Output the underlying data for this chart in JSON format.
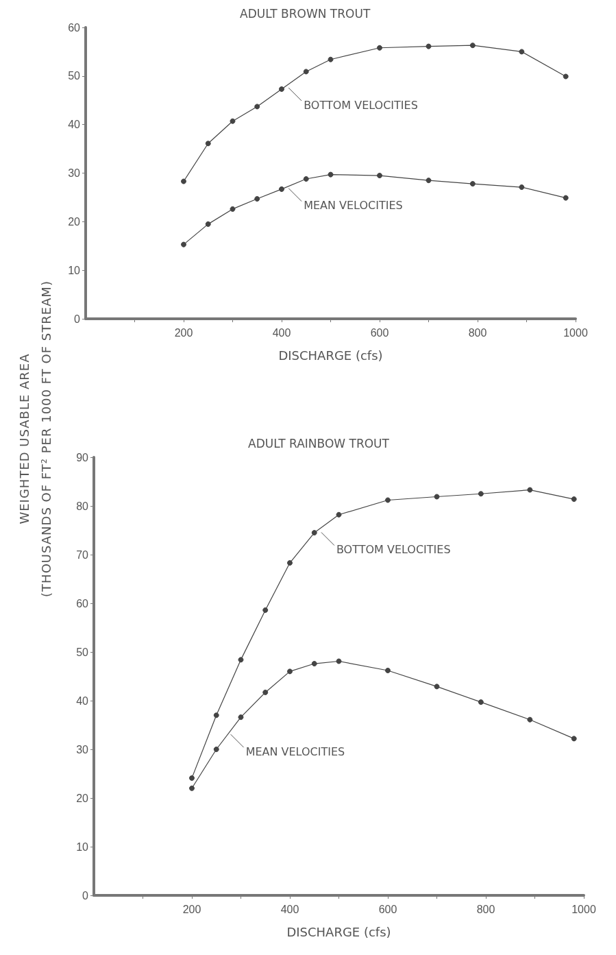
{
  "chart_data": [
    {
      "type": "line",
      "title": "ADULT BROWN TROUT",
      "xlabel": "DISCHARGE (cfs)",
      "ylabel": "WEIGHTED USABLE AREA\n(THOUSANDS OF FT² PER 1000 FT OF STREAM)",
      "x": [
        200,
        250,
        300,
        350,
        400,
        450,
        500,
        600,
        700,
        790,
        890,
        980
      ],
      "series": [
        {
          "color": "#444444",
          "values": [
            28.3,
            36.1,
            40.7,
            43.7,
            47.3,
            50.9,
            53.4,
            55.8,
            56.1,
            56.3,
            55.0,
            49.9
          ]
        },
        {
          "color": "#444444",
          "values": [
            15.3,
            19.5,
            22.6,
            24.7,
            26.7,
            28.8,
            29.7,
            29.5,
            28.5,
            27.8,
            27.1,
            24.9
          ]
        }
      ],
      "annotations": [
        {
          "text": "BOTTOM VELOCITIES",
          "x": 410,
          "y": 48
        },
        {
          "text": "MEAN VELOCITIES",
          "x": 410,
          "y": 27.3
        }
      ],
      "xlim": [
        0,
        1000
      ],
      "ylim": [
        0,
        60
      ],
      "xticks": [
        {
          "value": 100,
          "label": null
        },
        200,
        {
          "value": 300,
          "label": null
        },
        400,
        {
          "value": 500,
          "label": null
        },
        600,
        {
          "value": 700,
          "label": null
        },
        800,
        {
          "value": 900,
          "label": null
        },
        1000
      ],
      "yticks": [
        0,
        10,
        20,
        30,
        40,
        50,
        60
      ],
      "grid": false,
      "marker": "circle",
      "line_style": "solid"
    },
    {
      "type": "line",
      "title": "ADULT RAINBOW TROUT",
      "xlabel": "DISCHARGE (cfs)",
      "x": [
        200,
        250,
        300,
        350,
        400,
        450,
        500,
        600,
        700,
        790,
        890,
        980
      ],
      "series": [
        {
          "color": "#444444",
          "values": [
            24.1,
            37.0,
            48.4,
            58.6,
            68.3,
            74.5,
            78.2,
            81.2,
            81.9,
            82.5,
            83.3,
            81.4
          ]
        },
        {
          "color": "#444444",
          "values": [
            22.0,
            30.0,
            36.6,
            41.7,
            46.0,
            47.6,
            48.1,
            46.2,
            42.9,
            39.7,
            36.1,
            32.2
          ]
        }
      ],
      "annotations": [
        {
          "text": "BOTTOM VELOCITIES",
          "x": 460,
          "y": 75
        },
        {
          "text": "MEAN VELOCITIES",
          "x": 275,
          "y": 33.5
        }
      ],
      "xlim": [
        0,
        1000
      ],
      "ylim": [
        0,
        90
      ],
      "xticks": [
        {
          "value": 100,
          "label": null
        },
        200,
        {
          "value": 300,
          "label": null
        },
        400,
        {
          "value": 500,
          "label": null
        },
        600,
        {
          "value": 700,
          "label": null
        },
        800,
        {
          "value": 900,
          "label": null
        },
        1000
      ],
      "yticks": [
        0,
        10,
        20,
        30,
        40,
        50,
        60,
        70,
        80,
        90
      ],
      "grid": false,
      "marker": "circle",
      "line_style": "solid"
    }
  ]
}
